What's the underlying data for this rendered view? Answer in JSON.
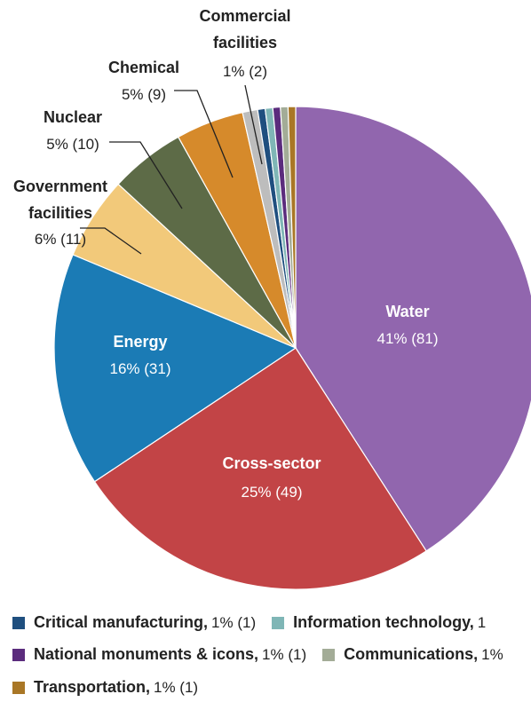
{
  "chart_data": {
    "type": "pie",
    "slices": [
      {
        "name": "Water",
        "percent": "41%",
        "count": "(81)",
        "value": 81,
        "color": "#9166ae"
      },
      {
        "name": "Cross-sector",
        "percent": "25%",
        "count": "(49)",
        "value": 49,
        "color": "#c24446"
      },
      {
        "name": "Energy",
        "percent": "16%",
        "count": "(31)",
        "value": 31,
        "color": "#1b7bb5"
      },
      {
        "name": "Government facilities",
        "name_lines": [
          "Government",
          "facilities"
        ],
        "percent": "6%",
        "count": "(11)",
        "value": 11,
        "color": "#f2c97a"
      },
      {
        "name": "Nuclear",
        "name_lines": [
          "Nuclear"
        ],
        "percent": "5%",
        "count": "(10)",
        "value": 10,
        "color": "#5d6b47"
      },
      {
        "name": "Chemical",
        "name_lines": [
          "Chemical"
        ],
        "percent": "5%",
        "count": "(9)",
        "value": 9,
        "color": "#d68a2b"
      },
      {
        "name": "Commercial facilities",
        "name_lines": [
          "Commercial",
          "facilities"
        ],
        "percent": "1%",
        "count": "(2)",
        "value": 2,
        "color": "#bdbdbd"
      },
      {
        "name": "Critical manufacturing",
        "percent": "1%",
        "count": "(1)",
        "value": 1,
        "color": "#1f4f7f"
      },
      {
        "name": "Information technology",
        "percent": "1",
        "count": "",
        "value": 1,
        "color": "#7fb6b6"
      },
      {
        "name": "National monuments & icons",
        "percent": "1%",
        "count": "(1)",
        "value": 1,
        "color": "#5b2c7d"
      },
      {
        "name": "Communications",
        "percent": "1%",
        "count": "",
        "value": 1,
        "color": "#a3ac97"
      },
      {
        "name": "Transportation",
        "percent": "1%",
        "count": "(1)",
        "value": 1,
        "color": "#a97726"
      }
    ],
    "legend": [
      [
        {
          "label": "Critical manufacturing,",
          "value": "1% (1)",
          "color": "#1f4f7f"
        },
        {
          "label": "Information technology,",
          "value": "1",
          "color": "#7fb6b6"
        }
      ],
      [
        {
          "label": "National monuments & icons,",
          "value": "1% (1)",
          "color": "#5b2c7d"
        },
        {
          "label": "Communications,",
          "value": "1%",
          "color": "#a3ac97"
        }
      ],
      [
        {
          "label": "Transportation,",
          "value": "1% (1)",
          "color": "#a97726"
        }
      ]
    ],
    "legend_placement": "bottom"
  }
}
